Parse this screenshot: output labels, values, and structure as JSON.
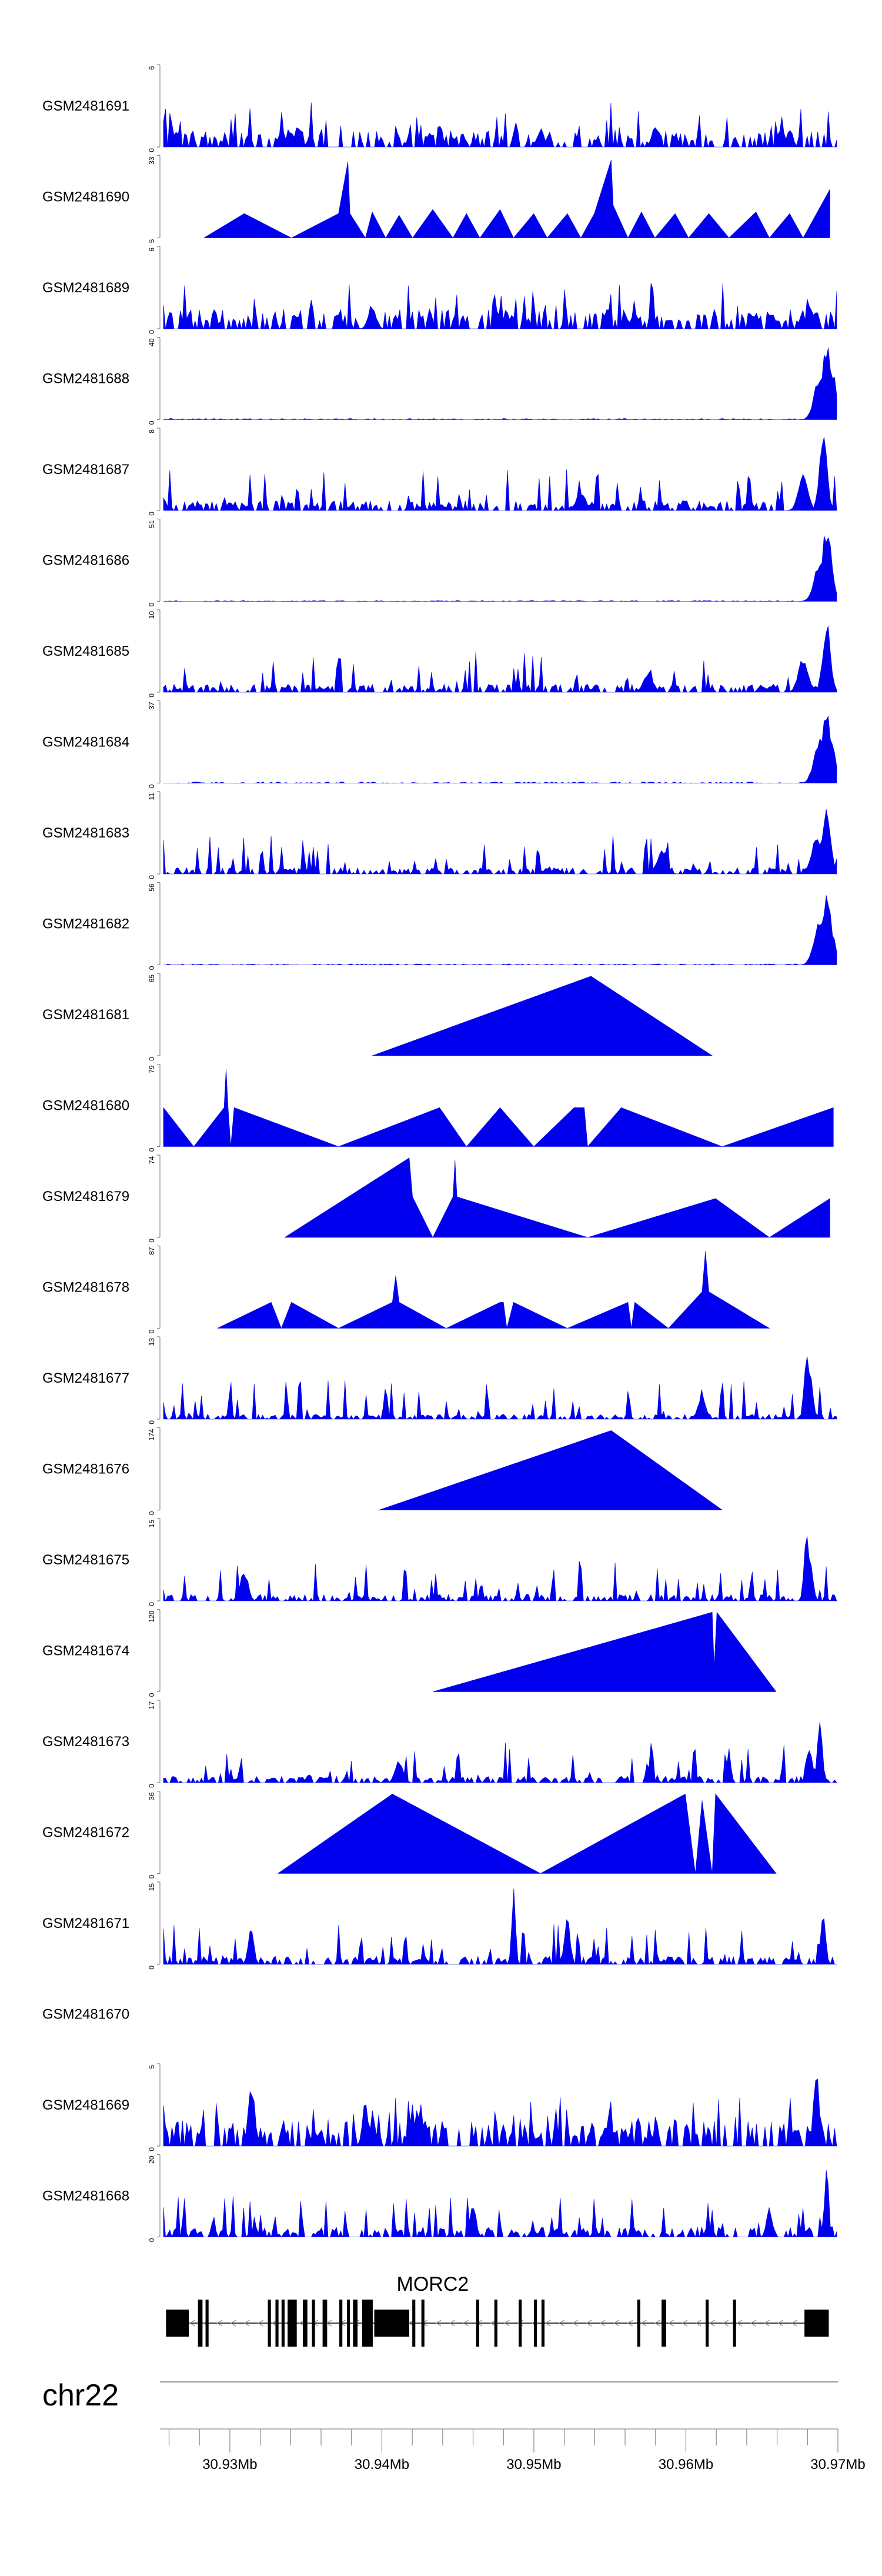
{
  "chart_data": {
    "type": "area",
    "title": "",
    "chromosome": "chr22",
    "gene": {
      "name": "MORC2",
      "strand": "-",
      "start": 30925800,
      "end": 30969400,
      "exons": [
        [
          30925800,
          30927300
        ],
        [
          30927900,
          30928200
        ],
        [
          30928400,
          30928600
        ],
        [
          30932500,
          30932700
        ],
        [
          30933000,
          30933200
        ],
        [
          30933400,
          30933600
        ],
        [
          30933800,
          30934400
        ],
        [
          30934800,
          30935100
        ],
        [
          30935400,
          30935600
        ],
        [
          30936100,
          30936400
        ],
        [
          30937200,
          30937400
        ],
        [
          30937700,
          30937900
        ],
        [
          30938100,
          30938400
        ],
        [
          30938700,
          30939400
        ],
        [
          30939500,
          30941800
        ],
        [
          30942000,
          30942200
        ],
        [
          30942600,
          30942800
        ],
        [
          30946200,
          30946400
        ],
        [
          30947400,
          30947600
        ],
        [
          30949000,
          30949200
        ],
        [
          30950000,
          30950200
        ],
        [
          30950500,
          30950700
        ],
        [
          30956800,
          30957000
        ],
        [
          30958400,
          30958700
        ],
        [
          30961300,
          30961500
        ],
        [
          30963100,
          30963300
        ],
        [
          30967800,
          30969400
        ]
      ]
    },
    "x_axis": {
      "range": [
        30925400,
        30970000
      ],
      "tick_labels": [
        "30.93Mb",
        "30.94Mb",
        "30.95Mb",
        "30.96Mb",
        "30.97Mb"
      ],
      "major_ticks": [
        30930000,
        30940000,
        30950000,
        30960000,
        30970000
      ]
    },
    "tracks": [
      {
        "name": "GSM2481691",
        "ymax": 6,
        "ymin_label": "0",
        "ymax_label": "6",
        "profile": "dense",
        "baseline": 0.05,
        "peaks": [
          [
            0.2,
            0.27,
            0.007
          ],
          [
            0.56,
            0.24,
            0.007
          ],
          [
            0.73,
            0.28,
            0.007
          ],
          [
            0.93,
            0.23,
            0.007
          ]
        ]
      },
      {
        "name": "GSM2481690",
        "ymax": 33,
        "ymin_label": "5",
        "ymax_label": "33",
        "profile": "triangles",
        "vertices": [
          [
            0.06,
            0
          ],
          [
            0.12,
            0.3
          ],
          [
            0.19,
            0
          ],
          [
            0.26,
            0.3
          ],
          [
            0.274,
            0.94
          ],
          [
            0.277,
            0.3
          ],
          [
            0.3,
            0
          ],
          [
            0.31,
            0.32
          ],
          [
            0.33,
            0
          ],
          [
            0.35,
            0.28
          ],
          [
            0.37,
            0
          ],
          [
            0.4,
            0.35
          ],
          [
            0.43,
            0
          ],
          [
            0.45,
            0.3
          ],
          [
            0.47,
            0
          ],
          [
            0.5,
            0.35
          ],
          [
            0.52,
            0
          ],
          [
            0.55,
            0.3
          ],
          [
            0.57,
            0
          ],
          [
            0.6,
            0.3
          ],
          [
            0.62,
            0
          ],
          [
            0.64,
            0.3
          ],
          [
            0.665,
            0.96
          ],
          [
            0.668,
            0.4
          ],
          [
            0.69,
            0
          ],
          [
            0.71,
            0.32
          ],
          [
            0.73,
            0
          ],
          [
            0.76,
            0.3
          ],
          [
            0.78,
            0
          ],
          [
            0.81,
            0.3
          ],
          [
            0.84,
            0
          ],
          [
            0.88,
            0.32
          ],
          [
            0.9,
            0
          ],
          [
            0.93,
            0.3
          ],
          [
            0.95,
            0
          ],
          [
            0.99,
            0.6
          ],
          [
            0.99,
            0
          ]
        ]
      },
      {
        "name": "GSM2481689",
        "ymax": 6,
        "ymin_label": "0",
        "ymax_label": "6",
        "profile": "dense",
        "baseline": 0.06,
        "peaks": [
          [
            0.31,
            0.32,
            0.008
          ],
          [
            0.5,
            0.22,
            0.007
          ],
          [
            0.7,
            0.2,
            0.008
          ],
          [
            0.96,
            0.3,
            0.008
          ]
        ]
      },
      {
        "name": "GSM2481688",
        "ymax": 40,
        "ymin_label": "0",
        "ymax_label": "40",
        "profile": "sparse",
        "baseline": 0.015,
        "peaks": [
          [
            0.985,
            0.95,
            0.01
          ],
          [
            0.975,
            0.55,
            0.012
          ],
          [
            0.995,
            0.6,
            0.006
          ]
        ]
      },
      {
        "name": "GSM2481687",
        "ymax": 8,
        "ymin_label": "0",
        "ymax_label": "8",
        "profile": "dense",
        "baseline": 0.03,
        "peaks": [
          [
            0.98,
            0.95,
            0.008
          ],
          [
            0.95,
            0.45,
            0.01
          ],
          [
            0.62,
            0.25,
            0.01
          ]
        ]
      },
      {
        "name": "GSM2481686",
        "ymax": 51,
        "ymin_label": "0",
        "ymax_label": "51",
        "profile": "sparse",
        "baseline": 0.012,
        "peaks": [
          [
            0.985,
            0.95,
            0.01
          ],
          [
            0.975,
            0.5,
            0.012
          ],
          [
            0.995,
            0.2,
            0.004
          ]
        ]
      },
      {
        "name": "GSM2481685",
        "ymax": 10,
        "ymin_label": "0",
        "ymax_label": "10",
        "profile": "dense",
        "baseline": 0.025,
        "peaks": [
          [
            0.985,
            0.95,
            0.008
          ],
          [
            0.95,
            0.45,
            0.01
          ],
          [
            0.72,
            0.25,
            0.01
          ]
        ]
      },
      {
        "name": "GSM2481684",
        "ymax": 37,
        "ymin_label": "0",
        "ymax_label": "37",
        "profile": "sparse",
        "baseline": 0.015,
        "peaks": [
          [
            0.985,
            0.95,
            0.01
          ],
          [
            0.975,
            0.6,
            0.012
          ],
          [
            0.995,
            0.5,
            0.006
          ]
        ]
      },
      {
        "name": "GSM2481683",
        "ymax": 11,
        "ymin_label": "0",
        "ymax_label": "11",
        "profile": "dense",
        "baseline": 0.02,
        "peaks": [
          [
            0.985,
            0.95,
            0.008
          ],
          [
            0.97,
            0.5,
            0.01
          ],
          [
            0.74,
            0.3,
            0.01
          ]
        ]
      },
      {
        "name": "GSM2481682",
        "ymax": 56,
        "ymin_label": "0",
        "ymax_label": "56",
        "profile": "sparse",
        "baseline": 0.012,
        "peaks": [
          [
            0.985,
            0.95,
            0.01
          ],
          [
            0.975,
            0.6,
            0.012
          ],
          [
            0.995,
            0.4,
            0.006
          ]
        ]
      },
      {
        "name": "GSM2481681",
        "ymax": 65,
        "ymin_label": "0",
        "ymax_label": "65",
        "profile": "triangles",
        "vertices": [
          [
            0.31,
            0
          ],
          [
            0.635,
            0.98
          ],
          [
            0.815,
            0
          ]
        ]
      },
      {
        "name": "GSM2481680",
        "ymax": 79,
        "ymin_label": "0",
        "ymax_label": "79",
        "profile": "triangles",
        "vertices": [
          [
            0.0,
            0.48
          ],
          [
            0.045,
            0
          ],
          [
            0.09,
            0.48
          ],
          [
            0.093,
            0.96
          ],
          [
            0.096,
            0.48
          ],
          [
            0.1,
            0
          ],
          [
            0.105,
            0.48
          ],
          [
            0.26,
            0
          ],
          [
            0.41,
            0.48
          ],
          [
            0.45,
            0
          ],
          [
            0.5,
            0.48
          ],
          [
            0.55,
            0
          ],
          [
            0.61,
            0.48
          ],
          [
            0.625,
            0.48
          ],
          [
            0.63,
            0
          ],
          [
            0.68,
            0.48
          ],
          [
            0.83,
            0
          ],
          [
            0.995,
            0.48
          ],
          [
            0.995,
            0
          ]
        ]
      },
      {
        "name": "GSM2481679",
        "ymax": 74,
        "ymin_label": "0",
        "ymax_label": "74",
        "profile": "triangles",
        "vertices": [
          [
            0.18,
            0
          ],
          [
            0.365,
            0.98
          ],
          [
            0.37,
            0.5
          ],
          [
            0.4,
            0
          ],
          [
            0.43,
            0.5
          ],
          [
            0.433,
            0.95
          ],
          [
            0.436,
            0.5
          ],
          [
            0.63,
            0
          ],
          [
            0.82,
            0.48
          ],
          [
            0.9,
            0
          ],
          [
            0.99,
            0.48
          ],
          [
            0.99,
            0
          ]
        ]
      },
      {
        "name": "GSM2481678",
        "ymax": 87,
        "ymin_label": "0",
        "ymax_label": "87",
        "profile": "triangles",
        "vertices": [
          [
            0.08,
            0
          ],
          [
            0.16,
            0.32
          ],
          [
            0.175,
            0
          ],
          [
            0.19,
            0.32
          ],
          [
            0.26,
            0
          ],
          [
            0.34,
            0.32
          ],
          [
            0.345,
            0.65
          ],
          [
            0.35,
            0.32
          ],
          [
            0.42,
            0
          ],
          [
            0.5,
            0.32
          ],
          [
            0.505,
            0.32
          ],
          [
            0.51,
            0
          ],
          [
            0.52,
            0.32
          ],
          [
            0.6,
            0
          ],
          [
            0.69,
            0.32
          ],
          [
            0.695,
            0
          ],
          [
            0.7,
            0.32
          ],
          [
            0.75,
            0
          ],
          [
            0.8,
            0.45
          ],
          [
            0.805,
            0.95
          ],
          [
            0.81,
            0.45
          ],
          [
            0.9,
            0
          ]
        ]
      },
      {
        "name": "GSM2481677",
        "ymax": 13,
        "ymin_label": "0",
        "ymax_label": "13",
        "profile": "dense",
        "baseline": 0.015,
        "peaks": [
          [
            0.955,
            0.95,
            0.005
          ],
          [
            0.96,
            0.7,
            0.006
          ],
          [
            0.8,
            0.3,
            0.008
          ]
        ]
      },
      {
        "name": "GSM2481676",
        "ymax": 174,
        "ymin_label": "0",
        "ymax_label": "174",
        "profile": "triangles",
        "vertices": [
          [
            0.32,
            0
          ],
          [
            0.665,
            0.98
          ],
          [
            0.83,
            0
          ]
        ]
      },
      {
        "name": "GSM2481675",
        "ymax": 15,
        "ymin_label": "0",
        "ymax_label": "15",
        "profile": "dense",
        "baseline": 0.02,
        "peaks": [
          [
            0.955,
            0.95,
            0.005
          ],
          [
            0.96,
            0.6,
            0.006
          ],
          [
            0.12,
            0.4,
            0.008
          ]
        ]
      },
      {
        "name": "GSM2481674",
        "ymax": 120,
        "ymin_label": "0",
        "ymax_label": "120",
        "profile": "triangles",
        "vertices": [
          [
            0.4,
            0
          ],
          [
            0.815,
            0.98
          ],
          [
            0.818,
            0.3
          ],
          [
            0.822,
            0.98
          ],
          [
            0.91,
            0
          ]
        ]
      },
      {
        "name": "GSM2481673",
        "ymax": 17,
        "ymin_label": "0",
        "ymax_label": "17",
        "profile": "dense",
        "baseline": 0.02,
        "peaks": [
          [
            0.975,
            0.95,
            0.005
          ],
          [
            0.96,
            0.5,
            0.006
          ],
          [
            0.35,
            0.3,
            0.008
          ]
        ]
      },
      {
        "name": "GSM2481672",
        "ymax": 36,
        "ymin_label": "0",
        "ymax_label": "36",
        "profile": "triangles",
        "vertices": [
          [
            0.17,
            0
          ],
          [
            0.34,
            0.98
          ],
          [
            0.56,
            0
          ],
          [
            0.775,
            0.98
          ],
          [
            0.79,
            0
          ],
          [
            0.8,
            0.9
          ],
          [
            0.815,
            0
          ],
          [
            0.82,
            0.98
          ],
          [
            0.91,
            0
          ]
        ]
      },
      {
        "name": "GSM2481671",
        "ymax": 15,
        "ymin_label": "0",
        "ymax_label": "15",
        "profile": "dense",
        "baseline": 0.025,
        "peaks": [
          [
            0.52,
            0.95,
            0.004
          ],
          [
            0.6,
            0.7,
            0.005
          ],
          [
            0.98,
            0.7,
            0.005
          ],
          [
            0.13,
            0.45,
            0.006
          ]
        ]
      },
      {
        "name": "GSM2481670",
        "ymax": null,
        "ymin_label": "",
        "ymax_label": "",
        "profile": "empty"
      },
      {
        "name": "GSM2481669",
        "ymax": 5,
        "ymin_label": "0",
        "ymax_label": "5",
        "profile": "dense",
        "baseline": 0.08,
        "peaks": [
          [
            0.13,
            0.8,
            0.006
          ],
          [
            0.97,
            0.95,
            0.006
          ],
          [
            0.3,
            0.6,
            0.006
          ]
        ]
      },
      {
        "name": "GSM2481668",
        "ymax": 20,
        "ymin_label": "0",
        "ymax_label": "20",
        "profile": "dense",
        "baseline": 0.03,
        "peaks": [
          [
            0.985,
            0.95,
            0.004
          ],
          [
            0.46,
            0.45,
            0.006
          ],
          [
            0.9,
            0.4,
            0.006
          ]
        ]
      }
    ]
  }
}
